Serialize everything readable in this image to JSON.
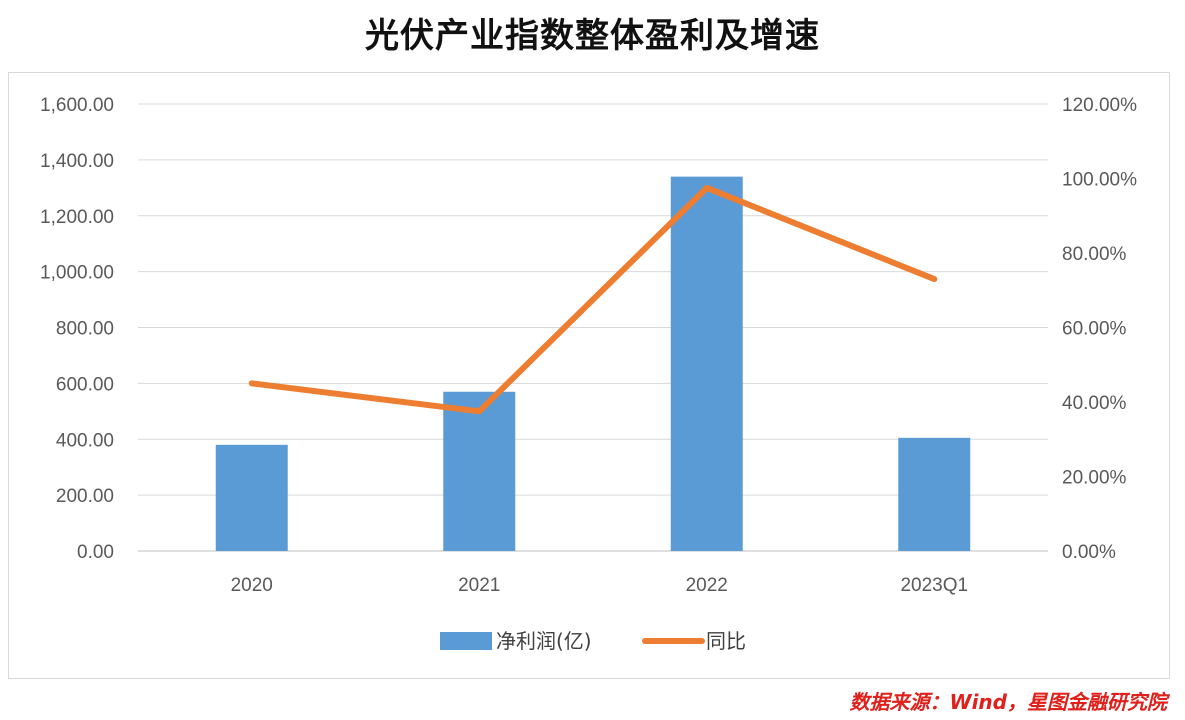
{
  "page": {
    "source_note": "数据来源：Wind，星图金融研究院"
  },
  "chart_data": {
    "type": "bar",
    "title": "光伏产业指数整体盈利及增速",
    "categories": [
      "2020",
      "2021",
      "2022",
      "2023Q1"
    ],
    "series": [
      {
        "name": "净利润(亿)",
        "type": "bar",
        "axis": "left",
        "values": [
          380,
          570,
          1340,
          405
        ],
        "color": "#5b9bd5"
      },
      {
        "name": "同比",
        "type": "line",
        "axis": "right",
        "values": [
          45.0,
          37.5,
          97.5,
          73.0
        ],
        "color": "#ed7d31"
      }
    ],
    "y_left": {
      "min": 0,
      "max": 1600,
      "step": 200,
      "tick_labels": [
        "0.00",
        "200.00",
        "400.00",
        "600.00",
        "800.00",
        "1,000.00",
        "1,200.00",
        "1,400.00",
        "1,600.00"
      ]
    },
    "y_right": {
      "min": 0,
      "max": 120,
      "step": 20,
      "tick_labels": [
        "0.00%",
        "20.00%",
        "40.00%",
        "60.00%",
        "80.00%",
        "100.00%",
        "120.00%"
      ]
    },
    "grid": true,
    "legend": "bottom"
  }
}
